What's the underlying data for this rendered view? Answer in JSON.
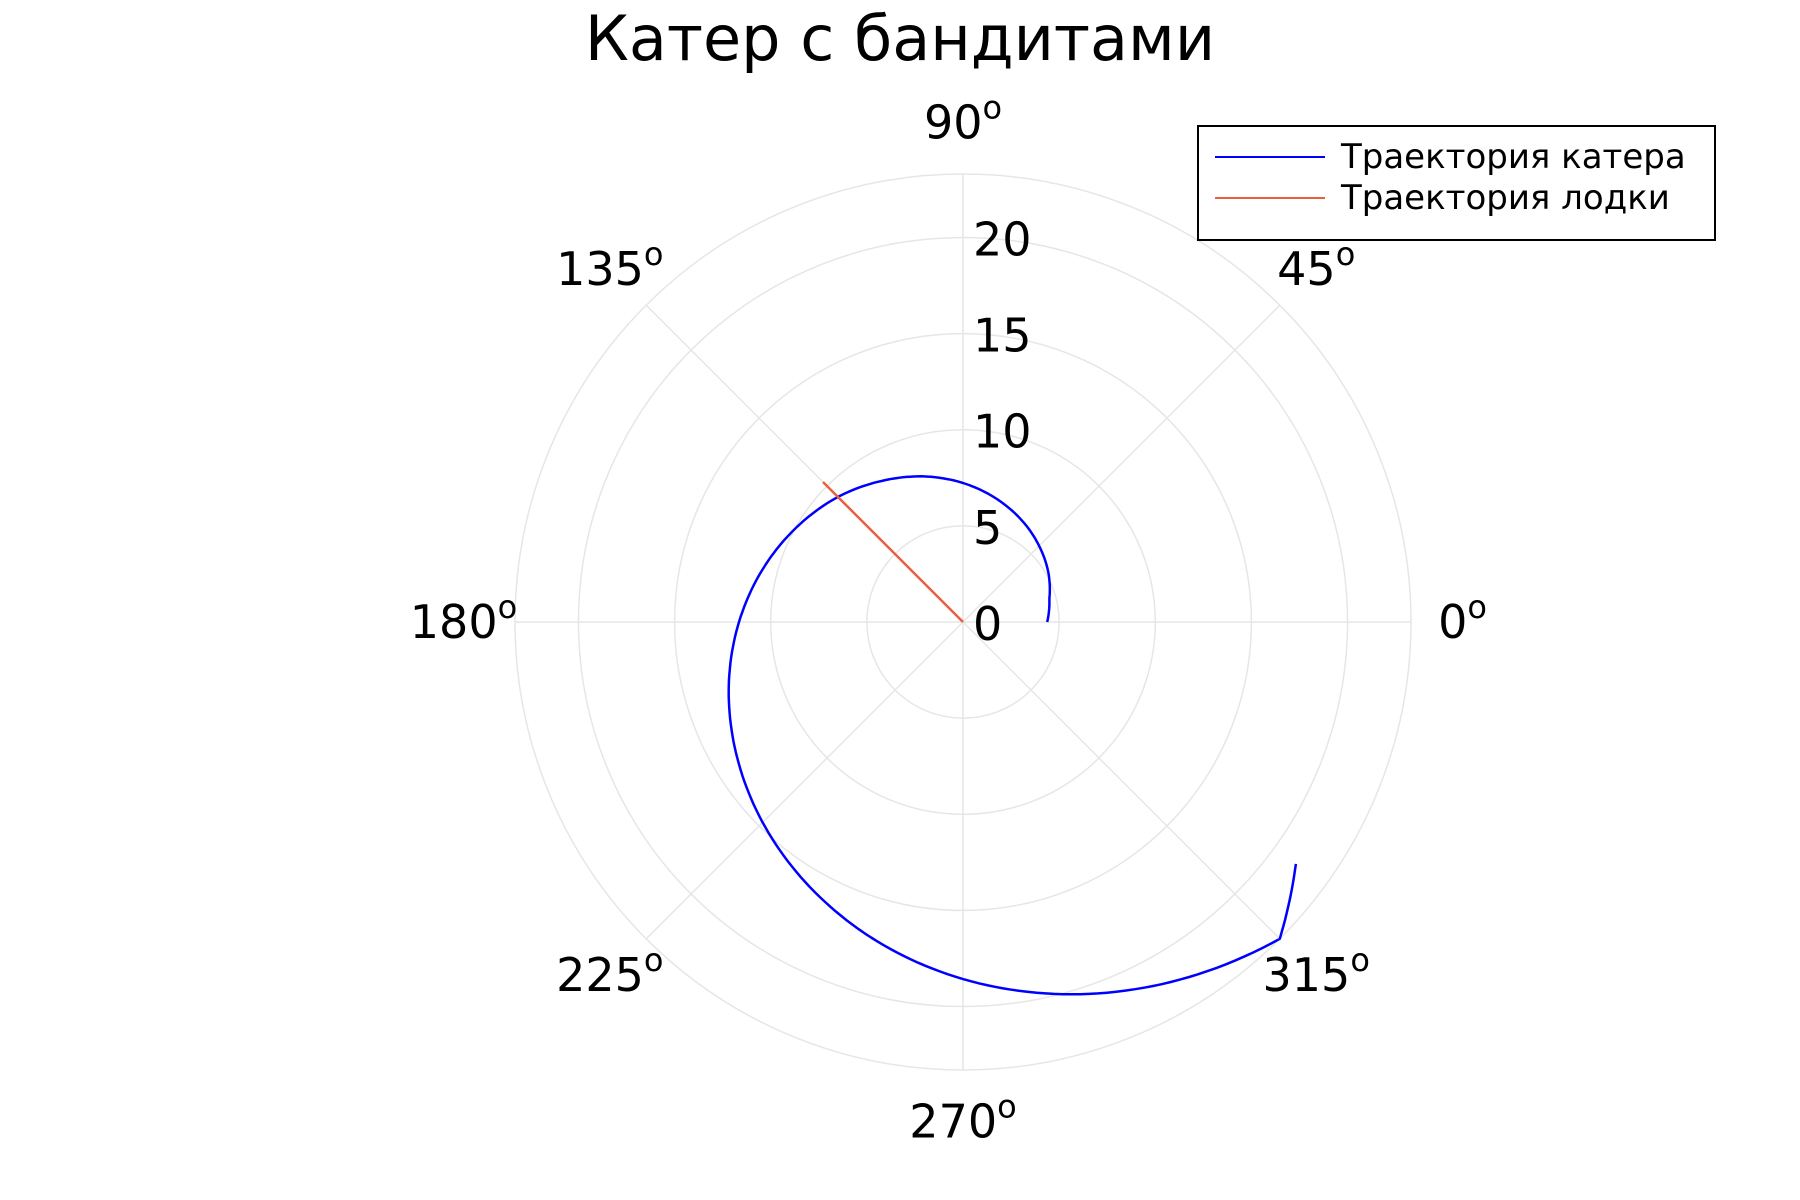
{
  "chart_data": {
    "type": "line",
    "projection": "polar",
    "title": "Катер с бандитами",
    "angle_unit": "degrees",
    "angle_ticks": [
      0,
      45,
      90,
      135,
      180,
      225,
      270,
      315
    ],
    "angle_tick_labels": [
      "0",
      "45",
      "90",
      "135",
      "180",
      "225",
      "270",
      "315"
    ],
    "degree_sign": "o",
    "r_ticks": [
      0,
      5,
      10,
      15,
      20
    ],
    "r_tick_labels": [
      "0",
      "5",
      "10",
      "15",
      "20"
    ],
    "rlim": [
      0,
      23.3
    ],
    "grid": true,
    "legend_position": "top-right",
    "series": [
      {
        "name": "Траектория катера",
        "color": "#0000ff",
        "theta_deg": [
          0,
          15,
          30,
          45,
          60,
          75,
          90,
          105,
          120,
          135,
          150,
          165,
          180,
          195,
          210,
          225,
          240,
          255,
          270,
          285,
          300,
          315,
          324
        ],
        "r": [
          4.38,
          4.65,
          5.13,
          5.6,
          6.11,
          6.65,
          7.23,
          7.84,
          8.47,
          9.2,
          9.94,
          10.76,
          11.65,
          12.61,
          13.63,
          14.74,
          15.92,
          17.2,
          18.57,
          20.04,
          21.62,
          23.3,
          21.4
        ]
      },
      {
        "name": "Траектория лодки",
        "color": "#e8613c",
        "theta_deg": [
          135,
          135
        ],
        "r": [
          0,
          10.3
        ]
      }
    ]
  }
}
